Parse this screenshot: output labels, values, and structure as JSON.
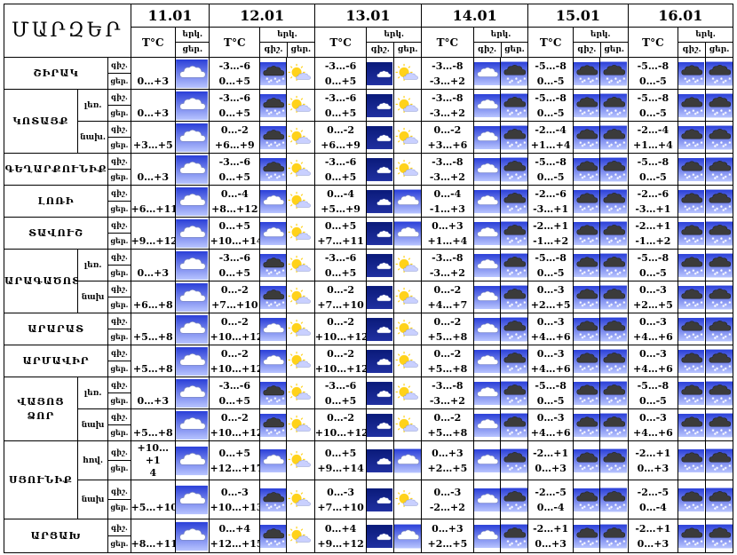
{
  "header": {
    "title": "ՄԱՐԶԵՐ",
    "dates": [
      "11.01",
      "12.01",
      "13.01",
      "14.01",
      "15.01",
      "16.01"
    ],
    "temp_label": "T°C",
    "sky_label": "երկ.",
    "night_label": "գիշ.",
    "day_label": "ցեր."
  },
  "rows": [
    {
      "region": "ՇԻՐԱԿ",
      "sub": "",
      "night": "գիշ.",
      "day": "ցեր.",
      "t": [
        "",
        "-3…-6",
        "-3…-6",
        "-3…-8",
        "-5…-8",
        "-5…-8"
      ],
      "t2": [
        "0…+3",
        "0…+5",
        "0…+5",
        "-3…+2",
        "0…-5",
        "0…-5"
      ],
      "icons": [
        [
          "cloud"
        ],
        [
          "cloud-dark",
          "sun-cloud"
        ],
        [
          "moon-cloud",
          "sun-cloud"
        ],
        [
          "cloud",
          "snow-dark"
        ],
        [
          "snow-dark",
          "snow-dark"
        ],
        [
          "snow-dark",
          "snow-dark"
        ]
      ]
    },
    {
      "region": "ԿՈՏԱՅՔ",
      "sub": "լեռ.",
      "night": "գիշ.",
      "day": "ցեր.",
      "t": [
        "",
        "-3…-6",
        "-3…-6",
        "-3…-8",
        "-5…-8",
        "-5…-8"
      ],
      "t2": [
        "0…+3",
        "0…+5",
        "0…+5",
        "-3…+2",
        "0…-5",
        "0…-5"
      ],
      "icons": [
        [
          "cloud"
        ],
        [
          "cloud-dark",
          "sun-cloud"
        ],
        [
          "moon-cloud",
          "sun-cloud"
        ],
        [
          "cloud",
          "snow-dark"
        ],
        [
          "snow-dark",
          "snow-dark"
        ],
        [
          "snow-dark",
          "snow-dark"
        ]
      ]
    },
    {
      "region": "",
      "sub": "նախ.",
      "night": "գիշ.",
      "day": "ցեր.",
      "t": [
        "",
        "0…-2",
        "0…-2",
        "0…-2",
        "-2…-4",
        "-2…-4"
      ],
      "t2": [
        "+3…+5",
        "+6…+9",
        "+6…+9",
        "+3…+6",
        "+1…+4",
        "+1…+4"
      ],
      "icons": [
        [
          "cloud"
        ],
        [
          "cloud-dark",
          "sun-cloud"
        ],
        [
          "moon-cloud",
          "sun-cloud"
        ],
        [
          "cloud",
          "snow-dark"
        ],
        [
          "snow-dark",
          "snow-dark"
        ],
        [
          "snow-dark",
          "snow-dark"
        ]
      ]
    },
    {
      "region": "ԳԵՂԱՐՔՈՒՆԻՔ",
      "sub": "",
      "night": "գիշ.",
      "day": "ցեր.",
      "t": [
        "",
        "-3…-6",
        "-3…-6",
        "-3…-8",
        "-5…-8",
        "-5…-8"
      ],
      "t2": [
        "0…+3",
        "0…+5",
        "0…+5",
        "-3…+2",
        "0…-5",
        "0…-5"
      ],
      "icons": [
        [
          "cloud"
        ],
        [
          "cloud-dark",
          "sun-cloud"
        ],
        [
          "moon-cloud",
          "sun-cloud"
        ],
        [
          "cloud",
          "snow-dark"
        ],
        [
          "snow-dark",
          "snow-dark"
        ],
        [
          "snow-dark",
          "snow-dark"
        ]
      ]
    },
    {
      "region": "ԼՈՌԻ",
      "sub": "",
      "night": "գիշ.",
      "day": "ցեր.",
      "t": [
        "",
        "0…-4",
        "0…-4",
        "0…-4",
        "-2…-6",
        "-2…-6"
      ],
      "t2": [
        "+6…+11",
        "+8…+12",
        "+5…+9",
        "-1…+3",
        "-3…+1",
        "-3…+1"
      ],
      "icons": [
        [
          "cloud"
        ],
        [
          "cloud",
          "sun-cloud"
        ],
        [
          "moon-cloud",
          "cloud"
        ],
        [
          "cloud",
          "snow-dark"
        ],
        [
          "snow-dark",
          "snow-dark"
        ],
        [
          "snow-dark",
          "snow-dark"
        ]
      ]
    },
    {
      "region": "ՏԱՎՈՒՇ",
      "sub": "",
      "night": "գիշ.",
      "day": "ցեր.",
      "t": [
        "",
        "0…+5",
        "0…+5",
        "0…+3",
        "-2…+1",
        "-2…+1"
      ],
      "t2": [
        "+9…+12",
        "+10…+14",
        "+7…+11",
        "+1…+4",
        "-1…+2",
        "-1…+2"
      ],
      "icons": [
        [
          "cloud"
        ],
        [
          "cloud",
          "sun-cloud"
        ],
        [
          "moon-cloud",
          "cloud"
        ],
        [
          "cloud",
          "snow-dark"
        ],
        [
          "snow-dark",
          "snow-dark"
        ],
        [
          "snow-dark",
          "snow-dark"
        ]
      ]
    },
    {
      "region": "ԱՐԱԳԱԾՈՏՆ",
      "sub": "լեռ.",
      "night": "գիշ.",
      "day": "ցեր.",
      "t": [
        "",
        "-3…-6",
        "-3…-6",
        "-3…-8",
        "-5…-8",
        "-5…-8"
      ],
      "t2": [
        "0…+3",
        "0…+5",
        "0…+5",
        "-3…+2",
        "0…-5",
        "0…-5"
      ],
      "icons": [
        [
          "cloud"
        ],
        [
          "cloud-dark",
          "sun-cloud"
        ],
        [
          "moon-cloud",
          "sun-cloud"
        ],
        [
          "cloud",
          "snow-dark"
        ],
        [
          "snow-dark",
          "snow-dark"
        ],
        [
          "snow-dark",
          "snow-dark"
        ]
      ]
    },
    {
      "region": "",
      "sub": "նախ",
      "night": "գիշ.",
      "day": "ցեր.",
      "t": [
        "",
        "0…-2",
        "0…-2",
        "0…-2",
        "0…-3",
        "0…-3"
      ],
      "t2": [
        "+6…+8",
        "+7…+10",
        "+7…+10",
        "+4…+7",
        "+2…+5",
        "+2…+5"
      ],
      "icons": [
        [
          "cloud"
        ],
        [
          "cloud-dark",
          "sun-cloud"
        ],
        [
          "moon-cloud",
          "sun-cloud"
        ],
        [
          "cloud",
          "snow-dark"
        ],
        [
          "snow-dark",
          "snow-dark"
        ],
        [
          "snow-dark",
          "snow-dark"
        ]
      ]
    },
    {
      "region": "ԱՐԱՐԱՏ",
      "sub": "",
      "night": "գիշ.",
      "day": "ցեր.",
      "t": [
        "",
        "0…-2",
        "0…-2",
        "0…-2",
        "0…-3",
        "0…-3"
      ],
      "t2": [
        "+5…+8",
        "+10…+12",
        "+10…+12",
        "+5…+8",
        "+4…+6",
        "+4…+6"
      ],
      "icons": [
        [
          "cloud"
        ],
        [
          "cloud",
          "sun-cloud"
        ],
        [
          "moon-cloud",
          "sun-cloud"
        ],
        [
          "cloud",
          "snow-dark"
        ],
        [
          "snow-dark",
          "snow-dark"
        ],
        [
          "snow-dark",
          "snow-dark"
        ]
      ]
    },
    {
      "region": "ԱՐՄԱՎԻՐ",
      "sub": "",
      "night": "գիշ.",
      "day": "ցեր.",
      "t": [
        "",
        "0…-2",
        "0…-2",
        "0…-2",
        "0…-3",
        "0…-3"
      ],
      "t2": [
        "+5…+8",
        "+10…+12",
        "+10…+12",
        "+5…+8",
        "+4…+6",
        "+4…+6"
      ],
      "icons": [
        [
          "cloud"
        ],
        [
          "cloud",
          "sun-cloud"
        ],
        [
          "moon-cloud",
          "sun-cloud"
        ],
        [
          "cloud",
          "snow-dark"
        ],
        [
          "snow-dark",
          "snow-dark"
        ],
        [
          "snow-dark",
          "snow-dark"
        ]
      ]
    },
    {
      "region": "ՎԱՅՈՑ\nՁՈՐ",
      "sub": "լեռ.",
      "night": "գիշ.",
      "day": "ցեր.",
      "t": [
        "",
        "-3…-6",
        "-3…-6",
        "-3…-8",
        "-5…-8",
        "-5…-8"
      ],
      "t2": [
        "0…+3",
        "0…+5",
        "0…+5",
        "-3…+2",
        "0…-5",
        "0…-5"
      ],
      "icons": [
        [
          "cloud"
        ],
        [
          "cloud-dark",
          "sun-cloud"
        ],
        [
          "moon-cloud",
          "sun-cloud"
        ],
        [
          "cloud",
          "snow-dark"
        ],
        [
          "snow-dark",
          "snow-dark"
        ],
        [
          "snow-dark",
          "snow-dark"
        ]
      ]
    },
    {
      "region": "",
      "sub": "նախ",
      "night": "գիշ.",
      "day": "ցեր.",
      "t": [
        "",
        "0…-2",
        "0…-2",
        "0…-2",
        "0…-3",
        "0…-3"
      ],
      "t2": [
        "+5…+8",
        "+10…+12",
        "+10…+12",
        "+5…+8",
        "+4…+6",
        "+4…+6"
      ],
      "icons": [
        [
          "cloud"
        ],
        [
          "cloud-dark",
          "sun-cloud"
        ],
        [
          "moon-cloud",
          "sun-cloud"
        ],
        [
          "cloud",
          "snow-dark"
        ],
        [
          "snow-dark",
          "snow-dark"
        ],
        [
          "snow-dark",
          "snow-dark"
        ]
      ]
    },
    {
      "region": "ՍՅՈՒՆԻՔ",
      "sub": "հով.",
      "night": "գիշ.",
      "day": "ցեր.",
      "t": [
        "+10…+1\n4",
        "0…+5",
        "0…+5",
        "0…+3",
        "-2…+1",
        "-2…+1"
      ],
      "t2": [
        "",
        "+12…+17",
        "+9…+14",
        "+2…+5",
        "0…+3",
        "0…+3"
      ],
      "icons": [
        [
          "cloud"
        ],
        [
          "cloud",
          "sun-cloud"
        ],
        [
          "moon-cloud",
          "cloud"
        ],
        [
          "cloud",
          "snow-dark"
        ],
        [
          "snow-dark",
          "snow-dark"
        ],
        [
          "snow-dark",
          "snow-dark"
        ]
      ]
    },
    {
      "region": "",
      "sub": "նախ",
      "night": "գիշ.",
      "day": "ցեր.",
      "t": [
        "",
        "0…-3",
        "0…-3",
        "0…-3",
        "-2…-5",
        "-2…-5"
      ],
      "t2": [
        "+5…+10",
        "+10…+13",
        "+7…+10",
        "-2…+2",
        "0…-4",
        "0…-4"
      ],
      "icons": [
        [
          "cloud"
        ],
        [
          "cloud-dark",
          "sun-cloud"
        ],
        [
          "moon-cloud",
          "sun-cloud"
        ],
        [
          "cloud",
          "snow-dark"
        ],
        [
          "snow-dark",
          "snow-dark"
        ],
        [
          "snow-dark",
          "snow-dark"
        ]
      ]
    },
    {
      "region": "ԱՐՑԱԽ",
      "sub": "",
      "night": "գիշ.",
      "day": "ցեր.",
      "t": [
        "",
        "0…+4",
        "0…+4",
        "0…+3",
        "-2…+1",
        "-2…+1"
      ],
      "t2": [
        "+8…+11",
        "+12…+15",
        "+9…+12",
        "+2…+5",
        "0…+3",
        "0…+3"
      ],
      "icons": [
        [
          "cloud"
        ],
        [
          "cloud-dark",
          "sun-cloud"
        ],
        [
          "moon-cloud",
          "cloud"
        ],
        [
          "cloud",
          "snow-dark"
        ],
        [
          "snow-dark",
          "snow-dark"
        ],
        [
          "snow-dark",
          "snow-dark"
        ]
      ]
    }
  ],
  "colors": {
    "sky_day_top": "#2a3fd8",
    "sky_day_bottom": "#b8c4ff",
    "sky_night": "#0a1a7a",
    "cloud_white": "#ffffff",
    "cloud_dark": "#3b3b3b",
    "sun": "#ffd21a",
    "moon": "#f5d64a"
  }
}
